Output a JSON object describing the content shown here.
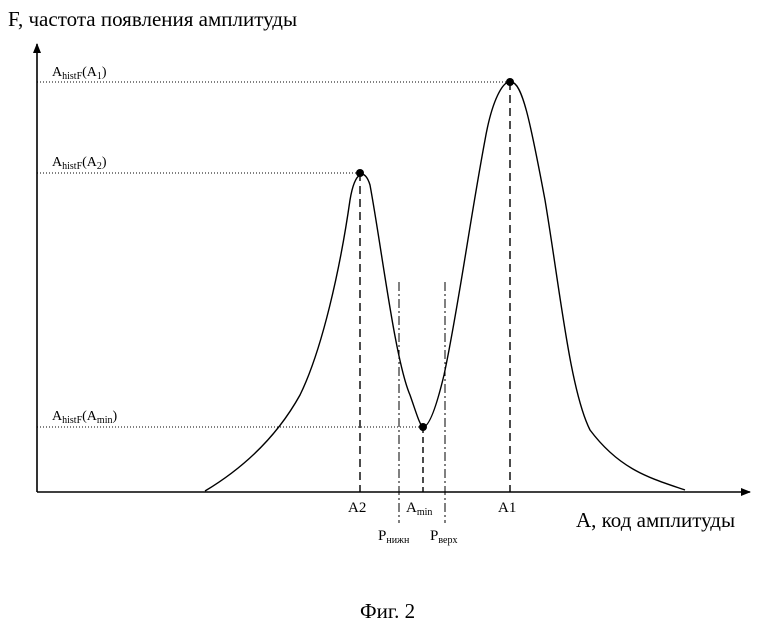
{
  "y_axis_label": "F, частота появления амплитуды",
  "x_axis_label": "A, код амплитуды",
  "caption": "Фиг. 2",
  "levels": {
    "a1": {
      "main": "A",
      "sub": "histF",
      "tail_open": "(A",
      "tail_sub": "1",
      "tail_close": ")"
    },
    "a2": {
      "main": "A",
      "sub": "histF",
      "tail_open": "(A",
      "tail_sub": "2",
      "tail_close": ")"
    },
    "amin": {
      "main": "A",
      "sub": "histF",
      "tail_open": "(A",
      "tail_sub": "min",
      "tail_close": ")"
    }
  },
  "x_labels": {
    "a2": "A2",
    "a1": "A1",
    "amin": {
      "main": "A",
      "sub": "min"
    },
    "p_low": {
      "main": "P",
      "sub": "нижн"
    },
    "p_high": {
      "main": "P",
      "sub": "верх"
    }
  }
}
